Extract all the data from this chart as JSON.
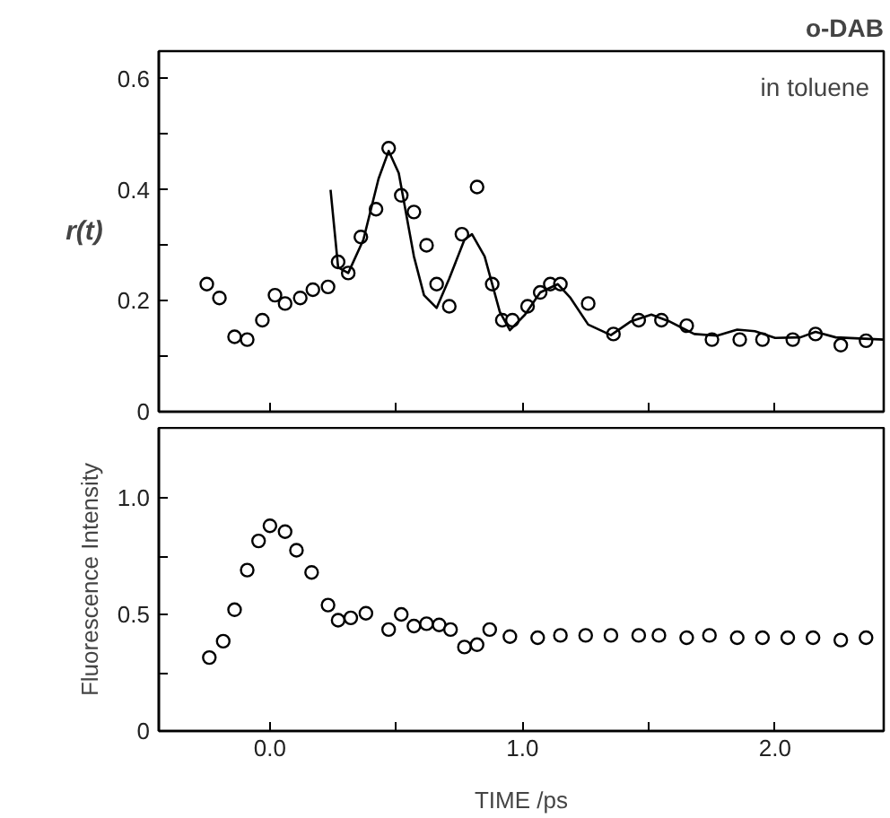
{
  "chart_data": [
    {
      "type": "scatter",
      "title": "o-DAB",
      "ylabel": "r(t)",
      "annotations": [
        "in toluene"
      ],
      "xlim": [
        -0.44,
        2.43
      ],
      "ylim": [
        0,
        0.65
      ],
      "xticks": [
        {
          "value": 0,
          "label": null
        },
        {
          "value": 0.5,
          "label": null
        },
        {
          "value": 1,
          "label": null
        },
        {
          "value": 1.5,
          "label": null
        },
        {
          "value": 2,
          "label": null
        }
      ],
      "yticks": [
        0,
        {
          "value": 0.1,
          "label": null
        },
        0.2,
        {
          "value": 0.3,
          "label": null
        },
        0.4,
        {
          "value": 0.5,
          "label": null
        },
        0.6
      ],
      "tick_labels": "y",
      "grid": false,
      "series": [
        {
          "marker": "circle",
          "color": "#000000",
          "x": [
            -0.25,
            -0.2,
            -0.14,
            -0.09,
            -0.03,
            0.02,
            0.06,
            0.12,
            0.17,
            0.23,
            0.27,
            0.31,
            0.36,
            0.42,
            0.47,
            0.52,
            0.57,
            0.62,
            0.66,
            0.71,
            0.76,
            0.82,
            0.88,
            0.92,
            0.96,
            1.02,
            1.07,
            1.11,
            1.15,
            1.26,
            1.36,
            1.46,
            1.55,
            1.65,
            1.75,
            1.86,
            1.95,
            2.07,
            2.16,
            2.26,
            2.36
          ],
          "values": [
            0.23,
            0.205,
            0.135,
            0.13,
            0.165,
            0.21,
            0.195,
            0.205,
            0.22,
            0.225,
            0.27,
            0.25,
            0.315,
            0.365,
            0.475,
            0.39,
            0.36,
            0.3,
            0.23,
            0.19,
            0.32,
            0.405,
            0.23,
            0.165,
            0.165,
            0.19,
            0.215,
            0.23,
            0.23,
            0.195,
            0.14,
            0.165,
            0.165,
            0.155,
            0.13,
            0.13,
            0.13,
            0.13,
            0.14,
            0.12,
            0.128
          ]
        },
        {
          "type": "line",
          "marker": "none",
          "color": "#000000",
          "line_style": "solid",
          "x": [
            0.24,
            0.27,
            0.31,
            0.37,
            0.43,
            0.47,
            0.51,
            0.57,
            0.61,
            0.66,
            0.71,
            0.77,
            0.8,
            0.85,
            0.91,
            0.95,
            1.01,
            1.07,
            1.14,
            1.19,
            1.26,
            1.35,
            1.43,
            1.51,
            1.58,
            1.68,
            1.77,
            1.85,
            1.92,
            2.0,
            2.1,
            2.16,
            2.24,
            2.43
          ],
          "values": [
            0.4,
            0.26,
            0.25,
            0.31,
            0.42,
            0.47,
            0.43,
            0.28,
            0.21,
            0.187,
            0.24,
            0.31,
            0.32,
            0.28,
            0.18,
            0.147,
            0.175,
            0.215,
            0.23,
            0.205,
            0.157,
            0.138,
            0.163,
            0.175,
            0.163,
            0.14,
            0.137,
            0.148,
            0.145,
            0.133,
            0.134,
            0.144,
            0.134,
            0.13
          ]
        }
      ]
    },
    {
      "type": "scatter",
      "xlabel": "TIME /ps",
      "ylabel": "Fluorescence Intensity",
      "xlim": [
        -0.44,
        2.43
      ],
      "ylim": [
        0,
        1.3
      ],
      "xticks": [
        {
          "value": 0,
          "label": "0.0"
        },
        {
          "value": 0.5,
          "label": null
        },
        {
          "value": 1,
          "label": "1.0"
        },
        {
          "value": 1.5,
          "label": null
        },
        {
          "value": 2,
          "label": "2.0"
        }
      ],
      "yticks": [
        0,
        {
          "value": 0.25,
          "label": null
        },
        0.5,
        {
          "value": 0.75,
          "label": null
        },
        {
          "value": 1,
          "label": "1.0"
        }
      ],
      "grid": false,
      "series": [
        {
          "marker": "circle",
          "color": "#000000",
          "x": [
            -0.24,
            -0.185,
            -0.14,
            -0.09,
            -0.045,
            0.0,
            0.06,
            0.105,
            0.165,
            0.23,
            0.27,
            0.32,
            0.38,
            0.47,
            0.52,
            0.57,
            0.62,
            0.67,
            0.715,
            0.77,
            0.82,
            0.87,
            0.95,
            1.06,
            1.15,
            1.25,
            1.35,
            1.46,
            1.54,
            1.65,
            1.74,
            1.85,
            1.95,
            2.05,
            2.15,
            2.26,
            2.36
          ],
          "values": [
            0.315,
            0.385,
            0.52,
            0.69,
            0.815,
            0.88,
            0.855,
            0.775,
            0.68,
            0.54,
            0.475,
            0.485,
            0.505,
            0.435,
            0.5,
            0.45,
            0.46,
            0.455,
            0.435,
            0.36,
            0.37,
            0.435,
            0.405,
            0.4,
            0.41,
            0.41,
            0.41,
            0.41,
            0.41,
            0.4,
            0.41,
            0.4,
            0.4,
            0.4,
            0.4,
            0.39,
            0.4
          ]
        }
      ]
    }
  ]
}
